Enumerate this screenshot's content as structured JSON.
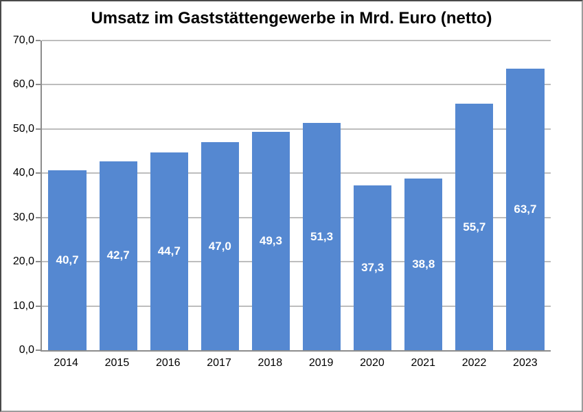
{
  "chart_data": {
    "type": "bar",
    "title": "Umsatz im Gaststättengewerbe in Mrd. Euro (netto)",
    "categories": [
      "2014",
      "2015",
      "2016",
      "2017",
      "2018",
      "2019",
      "2020",
      "2021",
      "2022",
      "2023"
    ],
    "values": [
      40.7,
      42.7,
      44.7,
      47.0,
      49.3,
      51.3,
      37.3,
      38.8,
      55.7,
      63.7
    ],
    "value_labels": [
      "40,7",
      "42,7",
      "44,7",
      "47,0",
      "49,3",
      "51,3",
      "37,3",
      "38,8",
      "55,7",
      "63,7"
    ],
    "xlabel": "",
    "ylabel": "",
    "ylim": [
      0,
      70
    ],
    "ytick_step": 10,
    "ytick_labels": [
      "0,0",
      "10,0",
      "20,0",
      "30,0",
      "40,0",
      "50,0",
      "60,0",
      "70,0"
    ],
    "grid": true,
    "legend_position": "none",
    "colors": {
      "bar_fill": "#5588d1",
      "value_label_text": "#ffffff",
      "gridline": "#bdbdbd",
      "axis_line": "#8c8c8c",
      "title_text": "#000000",
      "background": "#ffffff"
    }
  }
}
